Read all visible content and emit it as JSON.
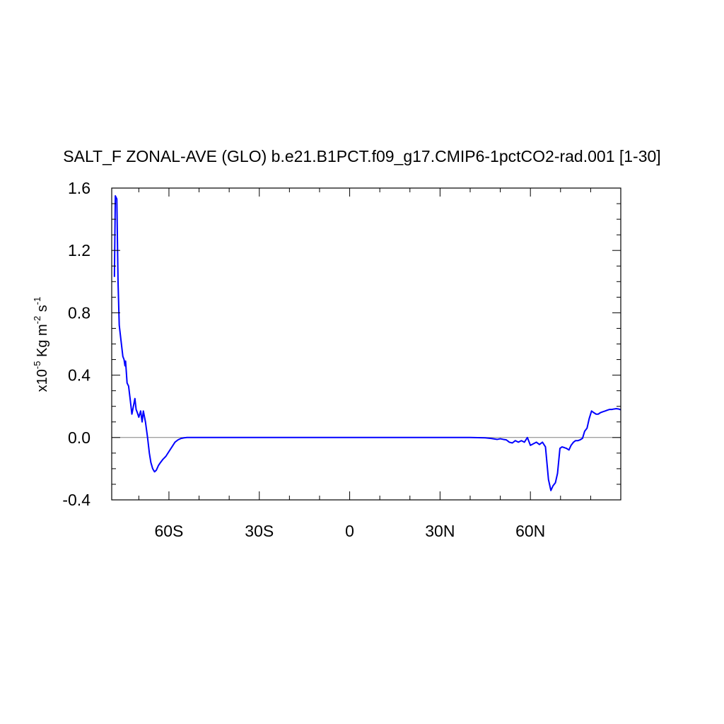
{
  "chart_data": {
    "type": "line",
    "title": "SALT_F ZONAL-AVE (GLO) b.e21.B1PCT.f09_g17.CMIP6-1pctCO2-rad.001 [1-30]",
    "ylabel": {
      "prefix": "x10",
      "exp1": "-5",
      "mid": " Kg m",
      "exp2": "-2",
      "mid2": " s",
      "exp3": "-1"
    },
    "xlim": [
      -79,
      90
    ],
    "ylim": [
      -0.4,
      1.6
    ],
    "x_ticks": [
      {
        "value": -60,
        "label": "60S"
      },
      {
        "value": -30,
        "label": "30S"
      },
      {
        "value": 0,
        "label": "0"
      },
      {
        "value": 30,
        "label": "30N"
      },
      {
        "value": 60,
        "label": "60N"
      }
    ],
    "y_ticks": [
      {
        "value": -0.4,
        "label": "-0.4"
      },
      {
        "value": 0.0,
        "label": "0.0"
      },
      {
        "value": 0.4,
        "label": "0.4"
      },
      {
        "value": 0.8,
        "label": "0.8"
      },
      {
        "value": 1.2,
        "label": "1.2"
      },
      {
        "value": 1.6,
        "label": "1.6"
      }
    ],
    "zero_line": true,
    "grid": false,
    "line_color": "#0000ff",
    "zero_line_color": "#808080",
    "series": [
      {
        "x": [
          -78.1,
          -77.8,
          -77.3,
          -76.9,
          -76.5,
          -75.9,
          -75.3,
          -74.9,
          -74.6,
          -74.4,
          -73.9,
          -73.4,
          -72.9,
          -72.3,
          -71.9,
          -71.3,
          -70.9,
          -70.5,
          -70.0,
          -69.4,
          -68.9,
          -68.5,
          -67.8,
          -67.1,
          -66.5,
          -66.0,
          -65.4,
          -64.8,
          -64.2,
          -63.5,
          -62.8,
          -62.0,
          -61.0,
          -60.0,
          -59.0,
          -58.0,
          -57.0,
          -56.0,
          -55.0,
          -54.0,
          -53.0,
          -51.0,
          -49.0,
          -45.0,
          -40.0,
          -30.0,
          -20.0,
          -10.0,
          0.0,
          10.0,
          20.0,
          30.0,
          40.0,
          45.0,
          47.0,
          49.0,
          50.0,
          51.0,
          52.0,
          53.0,
          54.0,
          55.0,
          56.0,
          57.0,
          58.0,
          59.0,
          60.0,
          61.0,
          62.0,
          63.0,
          64.0,
          65.0,
          66.0,
          66.8,
          67.5,
          68.3,
          69.0,
          69.8,
          70.5,
          71.3,
          72.0,
          72.8,
          73.5,
          74.3,
          75.0,
          75.8,
          76.5,
          77.3,
          78.0,
          78.8,
          79.5,
          80.3,
          81.0,
          81.8,
          82.5,
          83.3,
          84.0,
          84.8,
          85.5,
          86.3,
          87.0,
          87.8,
          88.5,
          89.3,
          90.0
        ],
        "values": [
          1.03,
          1.55,
          1.53,
          1.0,
          0.72,
          0.62,
          0.52,
          0.5,
          0.46,
          0.49,
          0.35,
          0.33,
          0.25,
          0.15,
          0.19,
          0.25,
          0.18,
          0.16,
          0.13,
          0.17,
          0.1,
          0.17,
          0.1,
          0.0,
          -0.1,
          -0.16,
          -0.2,
          -0.22,
          -0.21,
          -0.18,
          -0.16,
          -0.14,
          -0.12,
          -0.09,
          -0.06,
          -0.03,
          -0.015,
          -0.006,
          -0.002,
          0.0,
          0.0,
          0.0,
          0.0,
          0.0,
          0.0,
          0.0,
          0.0,
          0.0,
          0.0,
          0.0,
          0.0,
          0.0,
          0.0,
          -0.002,
          -0.006,
          -0.012,
          -0.008,
          -0.012,
          -0.015,
          -0.03,
          -0.035,
          -0.02,
          -0.03,
          -0.02,
          -0.03,
          0.0,
          -0.05,
          -0.04,
          -0.03,
          -0.045,
          -0.03,
          -0.06,
          -0.27,
          -0.34,
          -0.31,
          -0.29,
          -0.23,
          -0.07,
          -0.06,
          -0.065,
          -0.07,
          -0.08,
          -0.05,
          -0.03,
          -0.02,
          -0.02,
          -0.015,
          -0.005,
          0.04,
          0.06,
          0.12,
          0.17,
          0.16,
          0.15,
          0.15,
          0.16,
          0.165,
          0.17,
          0.175,
          0.18,
          0.18,
          0.183,
          0.185,
          0.183,
          0.178
        ]
      }
    ]
  }
}
